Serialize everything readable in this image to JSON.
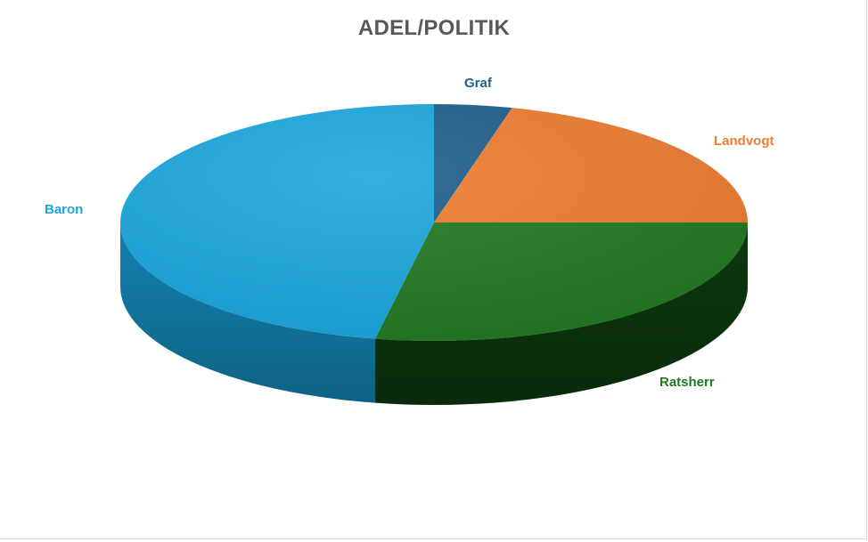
{
  "chart_data": {
    "type": "pie",
    "style": "3d",
    "title": "ADEL/POLITIK",
    "legend": "none",
    "categories": [
      "Graf",
      "Landvogt",
      "Ratsherr",
      "Baron"
    ],
    "values": [
      4,
      21,
      28,
      47
    ],
    "colors": [
      "#1f5f8b",
      "#ed7d31",
      "#217a21",
      "#1ca7de"
    ],
    "side_colors": [
      "#123e5c",
      "#a8551e",
      "#0e3b10",
      "#1488b8"
    ]
  }
}
